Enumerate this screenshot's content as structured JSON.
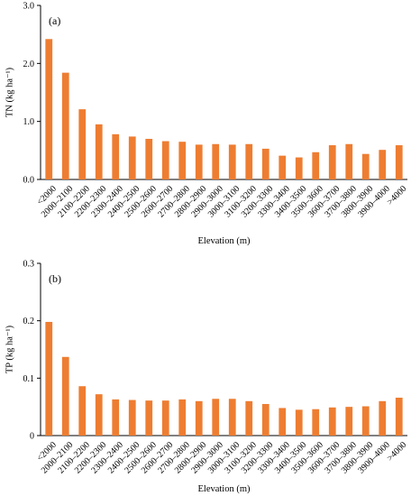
{
  "colors": {
    "bar": "#ee7d31",
    "axis": "#000000"
  },
  "chart_data": [
    {
      "type": "bar",
      "panel_label": "(a)",
      "ylabel": "TN (kg ha⁻¹)",
      "xlabel": "Elevation (m)",
      "ylim": [
        0,
        3.0
      ],
      "yticks": [
        "0.0",
        "1.0",
        "2.0",
        "3.0"
      ],
      "ytick_values": [
        0,
        1,
        2,
        3
      ],
      "grid": false,
      "categories": [
        "<2000",
        "2000–2100",
        "2100–2200",
        "2200–2300",
        "2300–2400",
        "2400–2500",
        "2500–2600",
        "2600–2700",
        "2700–2800",
        "2800–2900",
        "2900–3000",
        "3000–3100",
        "3100–3200",
        "3200–3300",
        "3300–3400",
        "3400–3500",
        "3500–3600",
        "3600–3700",
        "3700–3800",
        "3800–3900",
        "3900–4000",
        ">4000"
      ],
      "values": [
        2.42,
        1.84,
        1.21,
        0.95,
        0.78,
        0.74,
        0.7,
        0.66,
        0.65,
        0.6,
        0.61,
        0.6,
        0.61,
        0.53,
        0.41,
        0.38,
        0.47,
        0.59,
        0.61,
        0.44,
        0.51,
        0.59
      ]
    },
    {
      "type": "bar",
      "panel_label": "(b)",
      "ylabel": "TP (kg ha⁻¹)",
      "xlabel": "Elevation (m)",
      "ylim": [
        0,
        0.3
      ],
      "yticks": [
        "0",
        "0.1",
        "0.2",
        "0.3"
      ],
      "ytick_values": [
        0,
        0.1,
        0.2,
        0.3
      ],
      "grid": false,
      "categories": [
        "<2000",
        "2000–2100",
        "2100–2200",
        "2200–2300",
        "2300–2400",
        "2400–2500",
        "2500–2600",
        "2600–2700",
        "2700–2800",
        "2800–2900",
        "2900–3000",
        "3000–3100",
        "3100–3200",
        "3200–3300",
        "3300–3400",
        "3400–3500",
        "3500–3600",
        "3600–3700",
        "3700–3800",
        "3800–3900",
        "3900–4000",
        ">4000"
      ],
      "values": [
        0.198,
        0.137,
        0.086,
        0.072,
        0.063,
        0.062,
        0.061,
        0.061,
        0.063,
        0.06,
        0.064,
        0.064,
        0.06,
        0.055,
        0.048,
        0.045,
        0.046,
        0.049,
        0.05,
        0.051,
        0.06,
        0.066
      ]
    }
  ]
}
